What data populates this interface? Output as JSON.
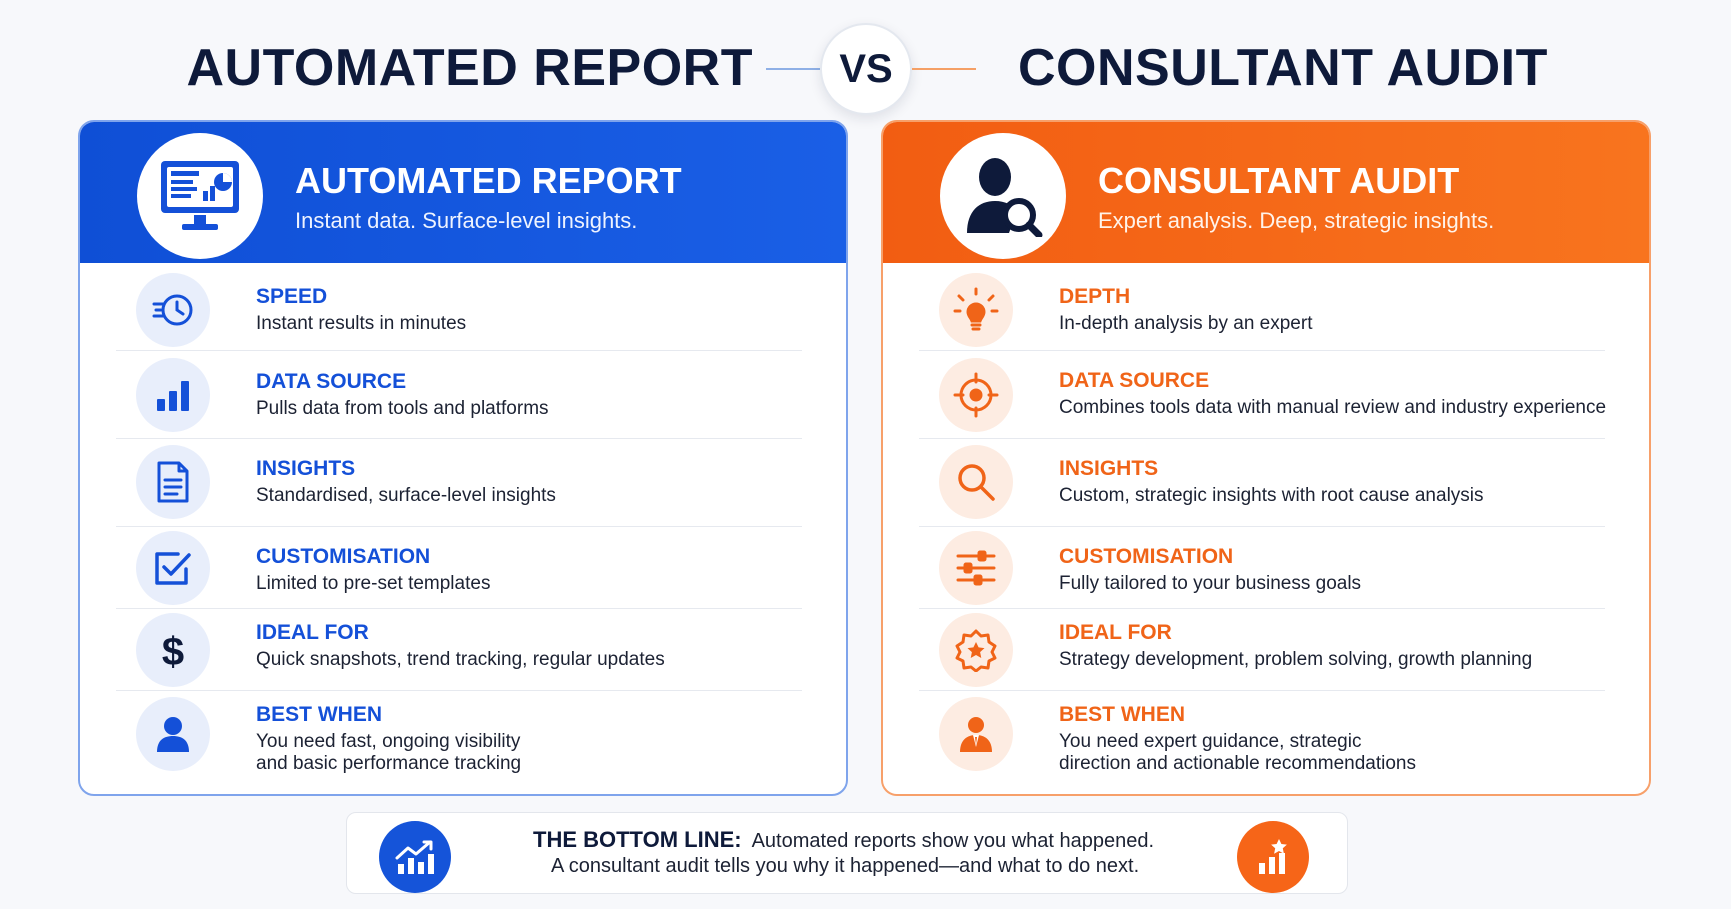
{
  "header": {
    "left_title": "AUTOMATED REPORT",
    "vs": "VS",
    "right_title": "CONSULTANT AUDIT"
  },
  "colors": {
    "blue": "#1450d8",
    "orange": "#f06418",
    "navy": "#0e1a3a"
  },
  "automated": {
    "icon": "monitor-chart-icon",
    "title": "AUTOMATED REPORT",
    "subtitle": "Instant data. Surface-level insights.",
    "rows": [
      {
        "icon": "clock-speed-icon",
        "title": "SPEED",
        "desc": [
          "Instant results in minutes"
        ]
      },
      {
        "icon": "bar-chart-icon",
        "title": "DATA SOURCE",
        "desc": [
          "Pulls data from tools and platforms"
        ]
      },
      {
        "icon": "document-icon",
        "title": "INSIGHTS",
        "desc": [
          "Standardised, surface-level insights"
        ]
      },
      {
        "icon": "checkbox-icon",
        "title": "CUSTOMISATION",
        "desc": [
          "Limited to pre-set templates"
        ]
      },
      {
        "icon": "dollar-icon",
        "title": "IDEAL FOR",
        "desc": [
          "Quick snapshots, trend tracking, regular updates"
        ]
      },
      {
        "icon": "user-icon",
        "title": "BEST WHEN",
        "desc": [
          "You need fast, ongoing visibility",
          "and basic performance tracking"
        ]
      }
    ]
  },
  "consultant": {
    "icon": "person-magnifier-icon",
    "title": "CONSULTANT AUDIT",
    "subtitle": "Expert analysis. Deep, strategic insights.",
    "rows": [
      {
        "icon": "lightbulb-icon",
        "title": "DEPTH",
        "desc": [
          "In-depth analysis by an expert"
        ]
      },
      {
        "icon": "target-icon",
        "title": "DATA SOURCE",
        "desc": [
          "Combines tools data with manual review and industry experience"
        ]
      },
      {
        "icon": "magnifier-icon",
        "title": "INSIGHTS",
        "desc": [
          "Custom, strategic insights with root cause analysis"
        ]
      },
      {
        "icon": "sliders-icon",
        "title": "CUSTOMISATION",
        "desc": [
          "Fully tailored to your business goals"
        ]
      },
      {
        "icon": "star-badge-icon",
        "title": "IDEAL FOR",
        "desc": [
          "Strategy development, problem solving, growth planning"
        ]
      },
      {
        "icon": "consultant-icon",
        "title": "BEST WHEN",
        "desc": [
          "You need expert guidance, strategic",
          "direction and actionable recommendations"
        ]
      }
    ]
  },
  "bottom": {
    "label": "THE BOTTOM LINE:",
    "line1": "Automated reports show you what happened.",
    "line2": "A consultant audit tells you why it happened—and what to do next.",
    "left_icon": "growth-chart-icon",
    "right_icon": "star-chart-icon"
  }
}
